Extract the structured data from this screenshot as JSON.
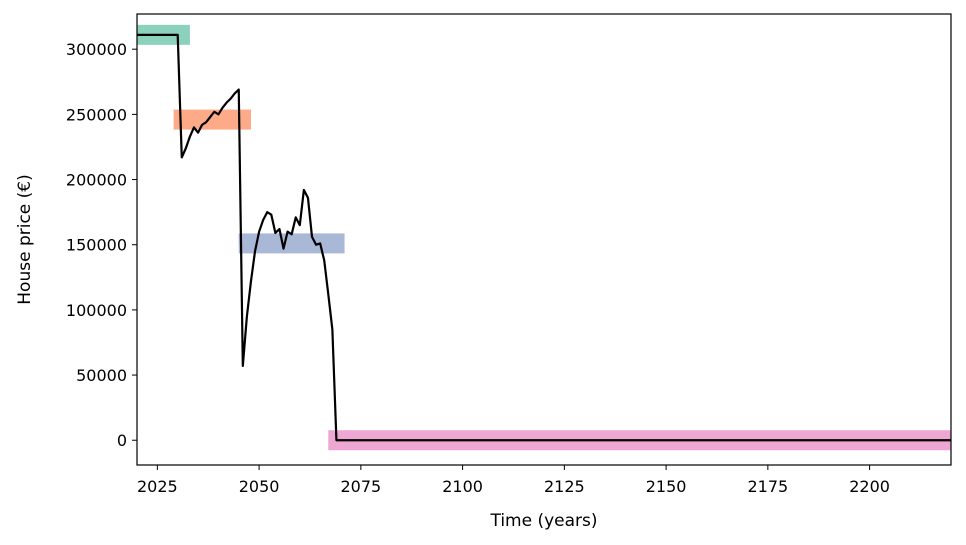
{
  "chart_data": {
    "type": "line",
    "title": "",
    "xlabel": "Time (years)",
    "ylabel": "House price (€)",
    "xlim": [
      2020,
      2220
    ],
    "ylim": [
      -19000,
      327000
    ],
    "xticks": [
      2025,
      2050,
      2075,
      2100,
      2125,
      2150,
      2175,
      2200
    ],
    "yticks": [
      0,
      50000,
      100000,
      150000,
      200000,
      250000,
      300000
    ],
    "grid": false,
    "legend": "none",
    "series": [
      {
        "color": "#000000",
        "points": [
          [
            2020,
            311000
          ],
          [
            2030,
            311000
          ],
          [
            2031,
            217000
          ],
          [
            2032,
            224000
          ],
          [
            2033,
            233000
          ],
          [
            2034,
            240000
          ],
          [
            2035,
            236000
          ],
          [
            2036,
            242000
          ],
          [
            2037,
            244000
          ],
          [
            2038,
            248000
          ],
          [
            2039,
            252000
          ],
          [
            2040,
            250000
          ],
          [
            2041,
            255000
          ],
          [
            2042,
            259000
          ],
          [
            2043,
            262000
          ],
          [
            2044,
            266000
          ],
          [
            2045,
            269000
          ],
          [
            2046,
            57000
          ],
          [
            2047,
            95000
          ],
          [
            2048,
            122000
          ],
          [
            2049,
            145000
          ],
          [
            2050,
            160000
          ],
          [
            2051,
            169000
          ],
          [
            2052,
            175000
          ],
          [
            2053,
            173000
          ],
          [
            2054,
            159000
          ],
          [
            2055,
            162000
          ],
          [
            2056,
            147000
          ],
          [
            2057,
            160000
          ],
          [
            2058,
            158000
          ],
          [
            2059,
            171000
          ],
          [
            2060,
            165000
          ],
          [
            2061,
            192000
          ],
          [
            2062,
            186000
          ],
          [
            2063,
            156000
          ],
          [
            2064,
            150000
          ],
          [
            2065,
            151000
          ],
          [
            2066,
            138000
          ],
          [
            2067,
            112000
          ],
          [
            2068,
            85000
          ],
          [
            2069,
            0
          ],
          [
            2220,
            0
          ]
        ]
      }
    ],
    "bands": [
      {
        "color": "#66c2a5",
        "x_start": 2020,
        "x_end": 2033,
        "y_center": 311000
      },
      {
        "color": "#fc8d62",
        "x_start": 2029,
        "x_end": 2048,
        "y_center": 246000
      },
      {
        "color": "#8da0cb",
        "x_start": 2045,
        "x_end": 2071,
        "y_center": 151000
      },
      {
        "color": "#e78ac3",
        "x_start": 2067,
        "x_end": 2220,
        "y_center": 0
      }
    ]
  }
}
